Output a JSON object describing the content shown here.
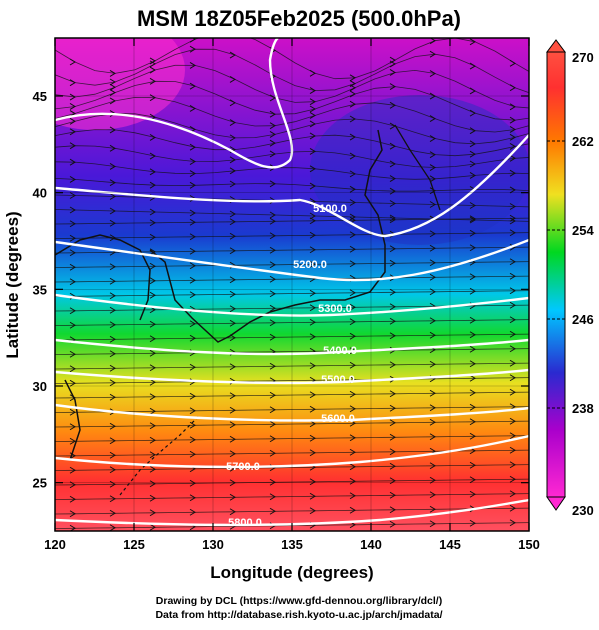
{
  "title": "MSM 18Z05Feb2025 (500.0hPa)",
  "x_axis": {
    "label": "Longitude (degrees)",
    "range": [
      120,
      150
    ],
    "ticks": [
      "120",
      "125",
      "130",
      "135",
      "140",
      "145",
      "150"
    ]
  },
  "y_axis": {
    "label": "Latitude  (degrees)",
    "range": [
      22.5,
      48
    ],
    "ticks": [
      "25",
      "30",
      "35",
      "40",
      "45"
    ]
  },
  "colorbar": {
    "range": [
      230,
      270
    ],
    "ticks": [
      "230",
      "238",
      "246",
      "254",
      "262",
      "270"
    ],
    "colors": [
      "#ff28d2",
      "#aa00cc",
      "#2a2ad0",
      "#00c8ff",
      "#00d820",
      "#f0e020",
      "#ff7800",
      "#ff3030",
      "#ff5040"
    ]
  },
  "contour_labels": [
    "5100.0",
    "5200.0",
    "5300.0",
    "5400.0",
    "5500.0",
    "5600.0",
    "5700.0",
    "5800.0"
  ],
  "credits": {
    "line1": "Drawing by DCL (https://www.gfd-dennou.org/library/dcl/)",
    "line2": "Data from http://database.rish.kyoto-u.ac.jp/arch/jmadata/"
  }
}
